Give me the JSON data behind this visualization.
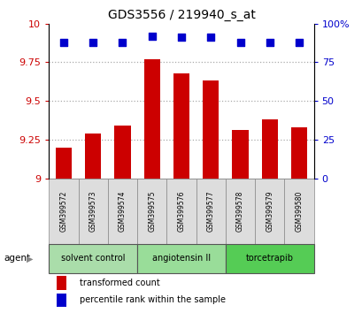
{
  "title": "GDS3556 / 219940_s_at",
  "samples": [
    "GSM399572",
    "GSM399573",
    "GSM399574",
    "GSM399575",
    "GSM399576",
    "GSM399577",
    "GSM399578",
    "GSM399579",
    "GSM399580"
  ],
  "bar_values": [
    9.2,
    9.29,
    9.34,
    9.77,
    9.68,
    9.63,
    9.31,
    9.38,
    9.33
  ],
  "percentile_values": [
    88,
    88,
    88,
    92,
    91,
    91,
    88,
    88,
    88
  ],
  "bar_color": "#cc0000",
  "dot_color": "#0000cc",
  "ylim_left": [
    9.0,
    10.0
  ],
  "ylim_right": [
    0,
    100
  ],
  "yticks_left": [
    9.0,
    9.25,
    9.5,
    9.75,
    10.0
  ],
  "yticks_right": [
    0,
    25,
    50,
    75,
    100
  ],
  "ytick_labels_left": [
    "9",
    "9.25",
    "9.5",
    "9.75",
    "10"
  ],
  "ytick_labels_right": [
    "0",
    "25",
    "50",
    "75",
    "100%"
  ],
  "groups": [
    {
      "label": "solvent control",
      "start": 0,
      "end": 3,
      "color": "#aaddaa"
    },
    {
      "label": "angiotensin II",
      "start": 3,
      "end": 6,
      "color": "#99dd99"
    },
    {
      "label": "torcetrapib",
      "start": 6,
      "end": 9,
      "color": "#55cc55"
    }
  ],
  "agent_label": "agent",
  "legend_items": [
    {
      "color": "#cc0000",
      "label": "transformed count"
    },
    {
      "color": "#0000cc",
      "label": "percentile rank within the sample"
    }
  ],
  "ticklabel_color_left": "#cc0000",
  "ticklabel_color_right": "#0000cc",
  "bar_width": 0.55,
  "dot_size": 30,
  "sample_box_color": "#dddddd",
  "sample_box_edge": "#888888"
}
